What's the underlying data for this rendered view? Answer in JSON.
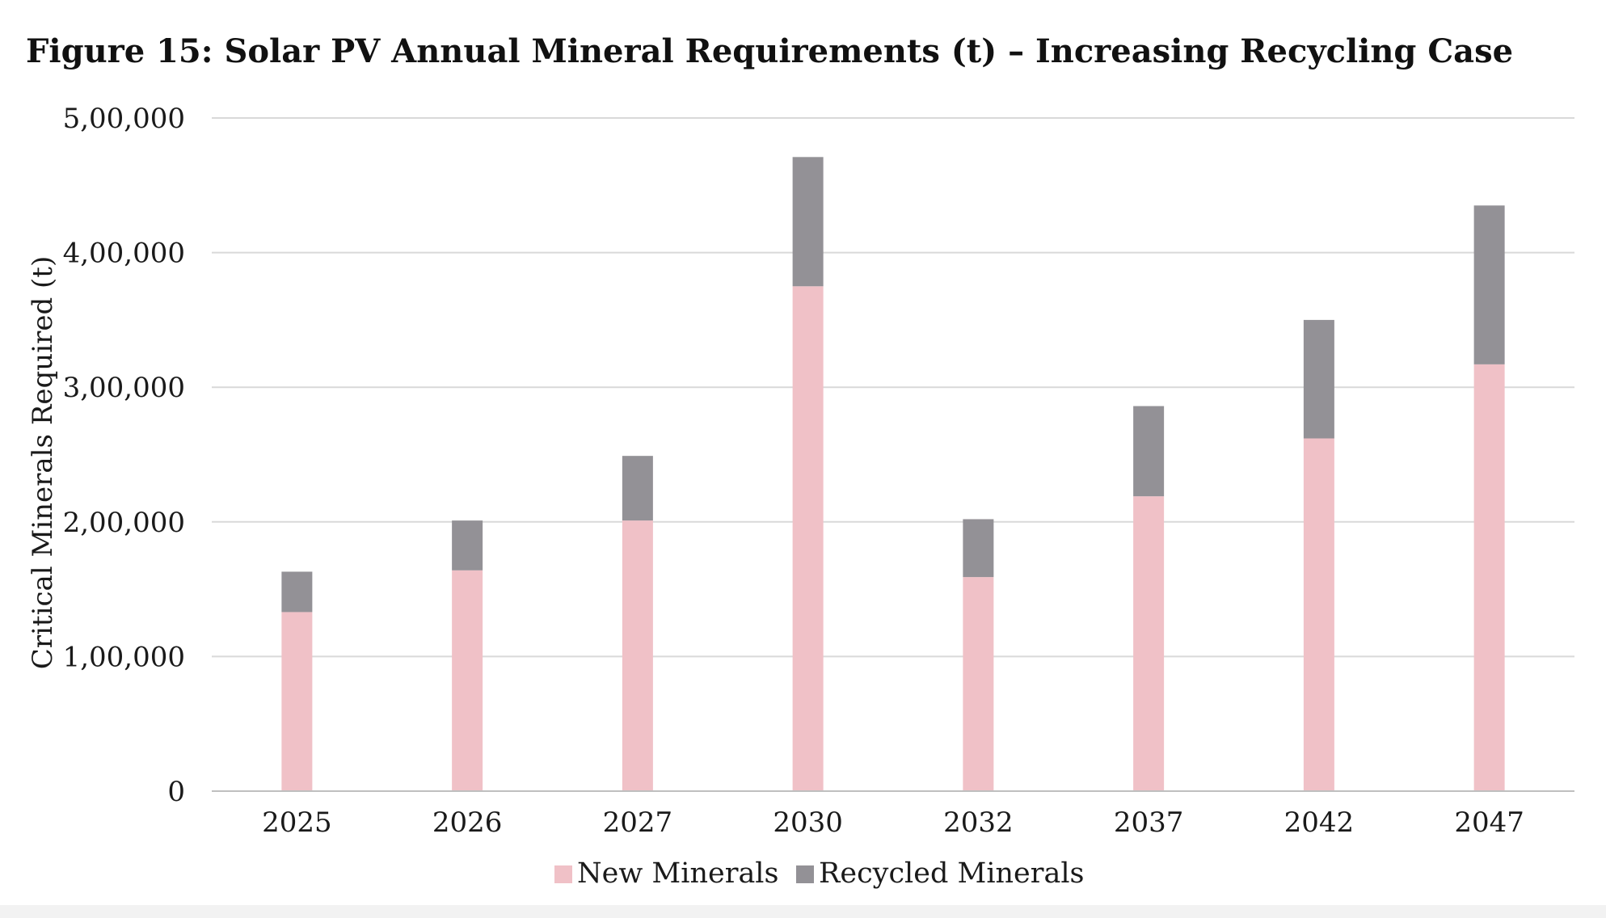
{
  "chart_data": {
    "type": "bar",
    "stacked": true,
    "title": "Figure 15: Solar PV Annual Mineral Requirements (t) – Increasing Recycling Case",
    "xlabel": "",
    "ylabel": "Critical Minerals Required (t)",
    "categories": [
      "2025",
      "2026",
      "2027",
      "2030",
      "2032",
      "2037",
      "2042",
      "2047"
    ],
    "series": [
      {
        "name": "New Minerals",
        "color": "#f0c1c7",
        "values": [
          133000,
          164000,
          201000,
          375000,
          159000,
          219000,
          262000,
          317000
        ]
      },
      {
        "name": "Recycled Minerals",
        "color": "#939196",
        "values": [
          30000,
          37000,
          48000,
          96000,
          43000,
          67000,
          88000,
          118000
        ]
      }
    ],
    "ylim": [
      0,
      500000
    ],
    "yticks": [
      0,
      100000,
      200000,
      300000,
      400000,
      500000
    ],
    "ytick_labels": [
      "0",
      "1,00,000",
      "2,00,000",
      "3,00,000",
      "4,00,000",
      "5,00,000"
    ],
    "grid": true,
    "legend_position": "bottom-center"
  }
}
